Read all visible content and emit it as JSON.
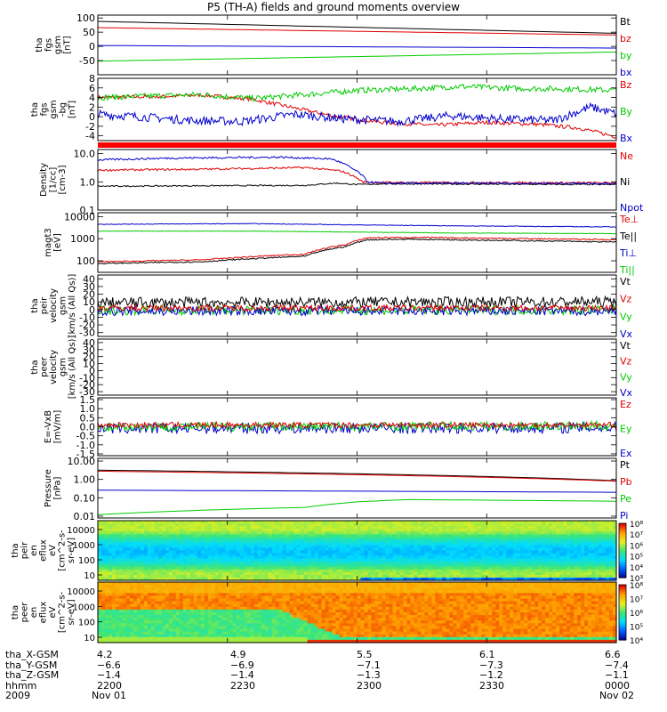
{
  "title": "P5 (TH-A) fields and ground moments overview",
  "colors": {
    "black": "#000000",
    "red": "#e00000",
    "green": "#00cc00",
    "blue": "#0000cc"
  },
  "chart_data": [
    {
      "type": "line",
      "ylabel": [
        "tha",
        "fgs",
        "gsm",
        "[nT]"
      ],
      "yticks": [
        "100",
        "50",
        "0",
        "-50"
      ],
      "ylim": [
        -100,
        110
      ],
      "legend": [
        {
          "label": "Bt",
          "color": "black"
        },
        {
          "label": "bz",
          "color": "red"
        },
        {
          "label": "by",
          "color": "green"
        },
        {
          "label": "bx",
          "color": "blue"
        }
      ],
      "series": [
        {
          "name": "Bt",
          "color": "black",
          "x": [
            0,
            1
          ],
          "y": [
            88,
            46
          ]
        },
        {
          "name": "bz",
          "color": "red",
          "x": [
            0,
            1
          ],
          "y": [
            66,
            40
          ]
        },
        {
          "name": "by",
          "color": "green",
          "x": [
            0,
            1
          ],
          "y": [
            -52,
            -20
          ]
        },
        {
          "name": "bx",
          "color": "blue",
          "x": [
            0,
            1
          ],
          "y": [
            3,
            -6
          ]
        }
      ]
    },
    {
      "type": "line",
      "ylabel": [
        "tha",
        "fgs",
        "gsm",
        "-bg",
        "[nT]"
      ],
      "yticks": [
        "8",
        "6",
        "4",
        "2",
        "0",
        "-2",
        "-4"
      ],
      "ylim": [
        -5,
        8
      ],
      "legend": [
        {
          "label": "Bz",
          "color": "red"
        },
        {
          "label": "By",
          "color": "green"
        },
        {
          "label": "Bx",
          "color": "blue"
        }
      ],
      "series": [
        {
          "name": "Bz",
          "color": "red",
          "x": [
            0,
            0.12,
            0.2,
            0.3,
            0.38,
            0.46,
            0.55,
            0.65,
            0.75,
            0.85,
            0.93,
            1
          ],
          "y": [
            4,
            4.2,
            4.5,
            3.6,
            1.8,
            0,
            -1.2,
            -1.8,
            -1.2,
            -1.6,
            -2.4,
            -4.2
          ],
          "noise": 0.4
        },
        {
          "name": "By",
          "color": "green",
          "x": [
            0,
            0.1,
            0.2,
            0.3,
            0.4,
            0.5,
            0.6,
            0.7,
            0.8,
            0.9,
            1
          ],
          "y": [
            4,
            4.3,
            4.6,
            3.8,
            4.6,
            5.5,
            5.8,
            6.3,
            5.9,
            5.8,
            5.5
          ],
          "noise": 0.6
        },
        {
          "name": "Bx",
          "color": "blue",
          "x": [
            0,
            0.08,
            0.18,
            0.28,
            0.38,
            0.48,
            0.58,
            0.68,
            0.78,
            0.88,
            0.95,
            1
          ],
          "y": [
            0.5,
            0,
            -0.8,
            -1,
            0.5,
            -0.5,
            -1,
            0.2,
            -0.5,
            -0.8,
            2,
            0.6
          ],
          "noise": 0.9
        }
      ]
    },
    {
      "type": "line",
      "ylabel": [
        "Density",
        "[1/cc]",
        "[cm-3]"
      ],
      "scale": "log",
      "yticks": [
        "10.0",
        "1.0",
        "0.1"
      ],
      "ylim": [
        0.1,
        14
      ],
      "legend": [
        {
          "label": "Ne",
          "color": "red"
        },
        {
          "label": "Ni",
          "color": "black"
        },
        {
          "label": "Npot",
          "color": "blue"
        }
      ],
      "series": [
        {
          "name": "Ni",
          "color": "black",
          "x": [
            0,
            0.4,
            0.46,
            0.5,
            0.55,
            1
          ],
          "y": [
            0.7,
            0.75,
            0.9,
            0.8,
            0.85,
            0.8
          ],
          "noise": 0.05
        },
        {
          "name": "Ne",
          "color": "red",
          "x": [
            0,
            0.2,
            0.4,
            0.47,
            0.51,
            0.53,
            1
          ],
          "y": [
            2.6,
            2.8,
            3.2,
            2.4,
            1.0,
            0.95,
            0.92
          ],
          "noise": 0.08
        },
        {
          "name": "Npot",
          "color": "blue",
          "x": [
            0,
            0.15,
            0.35,
            0.45,
            0.49,
            0.52,
            0.55,
            1
          ],
          "y": [
            6,
            7,
            7.5,
            6.5,
            3,
            1,
            0.9,
            0.88
          ],
          "noise": 0.08
        }
      ]
    },
    {
      "type": "line",
      "ylabel": [
        "magt3",
        "[eV]"
      ],
      "scale": "log",
      "yticks": [
        "10000",
        "1000",
        "100"
      ],
      "ylim": [
        30,
        15000
      ],
      "legend": [
        {
          "label": "Te⊥",
          "color": "red"
        },
        {
          "label": "Te||",
          "color": "black"
        },
        {
          "label": "Ti⊥",
          "color": "blue"
        },
        {
          "label": "Ti||",
          "color": "green"
        }
      ],
      "series": [
        {
          "name": "Ti⊥",
          "color": "blue",
          "x": [
            0,
            0.3,
            0.5,
            0.7,
            1
          ],
          "y": [
            4500,
            4800,
            4200,
            3800,
            3400
          ],
          "noise": 0.03
        },
        {
          "name": "Ti||",
          "color": "green",
          "x": [
            0,
            0.3,
            0.5,
            0.7,
            1
          ],
          "y": [
            2200,
            2200,
            2000,
            1800,
            1700
          ],
          "noise": 0.02
        },
        {
          "name": "Te⊥",
          "color": "red",
          "x": [
            0,
            0.2,
            0.4,
            0.48,
            0.52,
            0.6,
            1
          ],
          "y": [
            90,
            110,
            200,
            550,
            1100,
            1150,
            900
          ],
          "noise": 0.06
        },
        {
          "name": "Te||",
          "color": "black",
          "x": [
            0,
            0.2,
            0.4,
            0.48,
            0.52,
            0.6,
            1
          ],
          "y": [
            75,
            90,
            160,
            450,
            900,
            950,
            700
          ],
          "noise": 0.06
        }
      ]
    },
    {
      "type": "line",
      "ylabel": [
        "tha",
        "peir",
        "velocity",
        "gsm",
        "[km/s (All Qs)]"
      ],
      "yticks": [
        "40",
        "30",
        "20",
        "10",
        "0",
        "-10",
        "-20",
        "-30"
      ],
      "ylim": [
        -35,
        45
      ],
      "legend": [
        {
          "label": "Vt",
          "color": "black"
        },
        {
          "label": "Vz",
          "color": "red"
        },
        {
          "label": "Vy",
          "color": "green"
        },
        {
          "label": "Vx",
          "color": "blue"
        }
      ],
      "series": [
        {
          "name": "Vt",
          "color": "black",
          "x": [
            0,
            1
          ],
          "y": [
            9,
            10
          ],
          "noise": 7
        },
        {
          "name": "Vy",
          "color": "green",
          "x": [
            0,
            1
          ],
          "y": [
            -1,
            -1
          ],
          "noise": 6
        },
        {
          "name": "Vx",
          "color": "blue",
          "x": [
            0,
            1
          ],
          "y": [
            -2,
            -2
          ],
          "noise": 6
        },
        {
          "name": "Vz",
          "color": "red",
          "x": [
            0,
            1
          ],
          "y": [
            2,
            2
          ],
          "noise": 4
        }
      ]
    },
    {
      "type": "line",
      "ylabel": [
        "tha",
        "peer",
        "velocity",
        "gsm",
        "[km/s (All Qs)]"
      ],
      "yticks": [
        "40",
        "30",
        "20",
        "10",
        "0",
        "-10",
        "-20",
        "-30"
      ],
      "ylim": [
        -35,
        45
      ],
      "legend": [
        {
          "label": "Vt",
          "color": "black"
        },
        {
          "label": "Vz",
          "color": "red"
        },
        {
          "label": "Vy",
          "color": "green"
        },
        {
          "label": "Vx",
          "color": "blue"
        }
      ],
      "series": []
    },
    {
      "type": "line",
      "ylabel": [
        "E=-VxB",
        "[mV/m]"
      ],
      "yticks": [
        "1.5",
        "1.0",
        "0.5",
        "0.0",
        "-0.5",
        "-1.0",
        "-1.5"
      ],
      "ylim": [
        -1.6,
        1.6
      ],
      "legend": [
        {
          "label": "Ez",
          "color": "red"
        },
        {
          "label": "Ey",
          "color": "green"
        },
        {
          "label": "Ex",
          "color": "blue"
        }
      ],
      "series": [
        {
          "name": "Ex",
          "color": "blue",
          "x": [
            0,
            1
          ],
          "y": [
            -0.1,
            -0.05
          ],
          "noise": 0.3
        },
        {
          "name": "Ey",
          "color": "green",
          "x": [
            0,
            1
          ],
          "y": [
            0,
            0.05
          ],
          "noise": 0.25
        },
        {
          "name": "Ez",
          "color": "red",
          "x": [
            0,
            1
          ],
          "y": [
            0.1,
            0.1
          ],
          "noise": 0.15
        }
      ]
    },
    {
      "type": "line",
      "ylabel": [
        "Pressure",
        "[nPa]"
      ],
      "scale": "log",
      "yticks": [
        "10.00",
        "1.00",
        "0.10",
        "0.01"
      ],
      "ylim": [
        0.008,
        14
      ],
      "legend": [
        {
          "label": "Pt",
          "color": "black"
        },
        {
          "label": "Pb",
          "color": "red"
        },
        {
          "label": "Pe",
          "color": "green"
        },
        {
          "label": "Pi",
          "color": "blue"
        }
      ],
      "series": [
        {
          "name": "Pt",
          "color": "black",
          "x": [
            0,
            1
          ],
          "y": [
            3.2,
            0.85
          ]
        },
        {
          "name": "Pb",
          "color": "red",
          "x": [
            0,
            1
          ],
          "y": [
            2.8,
            0.8
          ]
        },
        {
          "name": "Pi",
          "color": "blue",
          "x": [
            0,
            1
          ],
          "y": [
            0.26,
            0.2
          ]
        },
        {
          "name": "Pe",
          "color": "green",
          "x": [
            0,
            0.4,
            0.5,
            0.6,
            1
          ],
          "y": [
            0.012,
            0.03,
            0.06,
            0.08,
            0.065
          ]
        }
      ]
    },
    {
      "type": "heatmap",
      "ylabel": [
        "tha",
        "peir",
        "en",
        "eflux",
        "eV",
        "[cm^2-s-",
        "sr-eV]"
      ],
      "yticks": [
        "10000",
        "1000",
        "100",
        "10"
      ],
      "colorbar": [
        "10⁸",
        "10⁷",
        "10⁶",
        "10⁵",
        "10⁴",
        "10³"
      ],
      "description_rows": [
        "high energy yellow-orange",
        "mid energy green-cyan",
        "low energy cyan-blue"
      ]
    },
    {
      "type": "heatmap",
      "ylabel": [
        "tha",
        "peer",
        "en",
        "eflux",
        "eV",
        "[cm^2-s-",
        "sr-eV]"
      ],
      "yticks": [
        "10000",
        "1000",
        "100",
        "10"
      ],
      "colorbar": [
        "10⁸",
        "10⁷",
        "10⁶",
        "10⁵",
        "10⁴"
      ]
    }
  ],
  "xaxis": {
    "rows": [
      {
        "label": "tha_X-GSM",
        "values": [
          "4.2",
          "4.9",
          "5.5",
          "6.1",
          "6.6"
        ]
      },
      {
        "label": "tha_Y-GSM",
        "values": [
          "−6.6",
          "−6.9",
          "−7.1",
          "−7.3",
          "−7.4"
        ]
      },
      {
        "label": "tha_Z-GSM",
        "values": [
          "−1.4",
          "−1.4",
          "−1.3",
          "−1.2",
          "−1.1"
        ]
      },
      {
        "label": "hhmm",
        "values": [
          "2200",
          "2230",
          "2300",
          "2330",
          "0000"
        ]
      },
      {
        "label": "2009",
        "values": [
          "Nov 01",
          "",
          "",
          "",
          "Nov 02"
        ]
      }
    ]
  }
}
